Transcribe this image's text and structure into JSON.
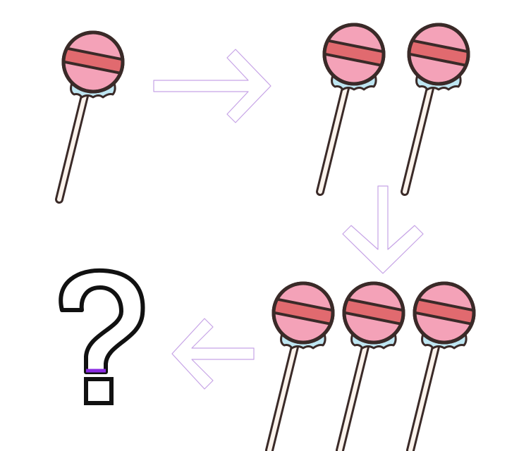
{
  "puzzle": {
    "sequence": [
      {
        "step": 1,
        "count": 1
      },
      {
        "step": 2,
        "count": 2
      },
      {
        "step": 3,
        "count": 3
      },
      {
        "step": 4,
        "count": null
      }
    ],
    "unknown_symbol": "?",
    "arrows": [
      "right",
      "down",
      "left"
    ]
  },
  "colors": {
    "candy": "#f4a2b8",
    "candy_stripe": "#e16a6f",
    "outline": "#3a2a28",
    "stick": "#fbf3ec",
    "wrapper": "#bfe6f2",
    "arrow_stroke": "#c6a3e6",
    "question_accent": "#8a2be2"
  },
  "icons": [
    "lollipop-icon",
    "arrow-right-icon",
    "arrow-down-icon",
    "arrow-left-icon",
    "question-mark-icon"
  ]
}
